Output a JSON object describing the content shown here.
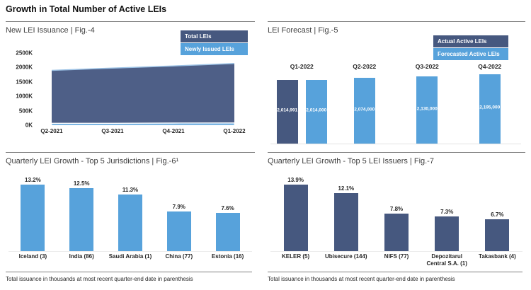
{
  "page": {
    "title": "Growth in Total Number of Active LEIs"
  },
  "colors": {
    "dark": "#46587F",
    "light": "#57A2DB",
    "area_dark": "#4E5F87",
    "area_light": "#5BA3DC",
    "area_top_line": "#9DC3E6",
    "divider": "#808080",
    "text": "#262626"
  },
  "legends": {
    "fig4": [
      {
        "label": "Total LEIs",
        "color": "dark"
      },
      {
        "label": "Newly Issued LEIs",
        "color": "light"
      }
    ],
    "fig5": [
      {
        "label": "Actual Active LEIs",
        "color": "dark"
      },
      {
        "label": "Forecasted Active LEIs",
        "color": "light"
      }
    ]
  },
  "footnotes": {
    "fig6": "Total issuance in thousands at most recent quarter-end date in parenthesis",
    "fig7": "Total issuance in thousands at most recent quarter-end date in parenthesis"
  },
  "chart_data": [
    {
      "id": "fig4",
      "type": "area",
      "title": "New LEI Issuance | Fig.-4",
      "categories": [
        "Q2-2021",
        "Q3-2021",
        "Q4-2021",
        "Q1-2022"
      ],
      "series": [
        {
          "name": "Total LEIs",
          "values": [
            1900000,
            1980000,
            2055000,
            2140000
          ],
          "color": "area_dark"
        },
        {
          "name": "Newly Issued LEIs",
          "values": [
            60000,
            60000,
            65000,
            70000
          ],
          "color": "area_light"
        }
      ],
      "ylim": [
        0,
        2500000
      ],
      "yticks": [
        "2500K",
        "2000K",
        "1500K",
        "1000K",
        "500K",
        "0K"
      ],
      "legend_position": "top-right",
      "grid": false
    },
    {
      "id": "fig5",
      "type": "bar",
      "title": "LEI Forecast | Fig.-5",
      "legend_position": "top-right",
      "grid": false,
      "groups": [
        {
          "category": "Q1-2022",
          "bars": [
            {
              "series": "Actual Active LEIs",
              "value": 2014991,
              "label": "2,014,991",
              "color": "dark"
            },
            {
              "series": "Forecasted Active LEIs",
              "value": 2014000,
              "label": "2,014,000",
              "color": "light"
            }
          ]
        },
        {
          "category": "Q2-2022",
          "bars": [
            {
              "series": "Forecasted Active LEIs",
              "value": 2074000,
              "label": "2,074,000",
              "color": "light"
            }
          ]
        },
        {
          "category": "Q3-2022",
          "bars": [
            {
              "series": "Forecasted Active LEIs",
              "value": 2130000,
              "label": "2,130,000",
              "color": "light"
            }
          ]
        },
        {
          "category": "Q4-2022",
          "bars": [
            {
              "series": "Forecasted Active LEIs",
              "value": 2195000,
              "label": "2,195,000",
              "color": "light"
            }
          ]
        }
      ]
    },
    {
      "id": "fig6",
      "type": "bar",
      "title": "Quarterly LEI Growth - Top 5 Jurisdictions | Fig.-6¹",
      "categories": [
        "Iceland (3)",
        "India (86)",
        "Saudi Arabia (1)",
        "China (77)",
        "Estonia (16)"
      ],
      "values": [
        13.2,
        12.5,
        11.3,
        7.9,
        7.6
      ],
      "labels": [
        "13.2%",
        "12.5%",
        "11.3%",
        "7.9%",
        "7.6%"
      ],
      "bar_color": "light",
      "grid": false
    },
    {
      "id": "fig7",
      "type": "bar",
      "title": "Quarterly LEI Growth - Top 5 LEI Issuers | Fig.-7",
      "categories": [
        "KELER (5)",
        "Ubisecure (144)",
        "NIFS (77)",
        "Depozitarul Central S.A. (1)",
        "Takasbank (4)"
      ],
      "values": [
        13.9,
        12.1,
        7.8,
        7.3,
        6.7
      ],
      "labels": [
        "13.9%",
        "12.1%",
        "7.8%",
        "7.3%",
        "6.7%"
      ],
      "bar_color": "dark",
      "grid": false
    }
  ]
}
